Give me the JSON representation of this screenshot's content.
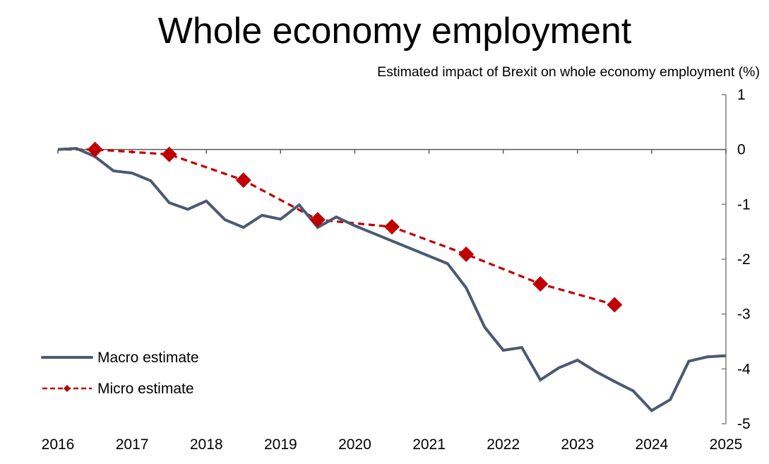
{
  "chart_data": {
    "type": "line",
    "title": "Whole economy employment",
    "subtitle": "Estimated impact of Brexit on whole economy employment (%)",
    "xlabel": "",
    "ylabel": "Estimated impact of Brexit on whole economy employment (%)",
    "xlim": [
      2016,
      2025
    ],
    "ylim": [
      -5,
      1
    ],
    "x_ticks": [
      2016,
      2017,
      2018,
      2019,
      2020,
      2021,
      2022,
      2023,
      2024,
      2025
    ],
    "x_tick_labels": [
      "2016",
      "2017",
      "2018",
      "2019",
      "2020",
      "2021",
      "2022",
      "2023",
      "2024",
      "2025"
    ],
    "y_ticks": [
      1,
      0,
      -1,
      -2,
      -3,
      -4,
      -5
    ],
    "y_tick_labels": [
      "1",
      "0",
      "-1",
      "-2",
      "-3",
      "-4",
      "-5"
    ],
    "y_axis_side": "right",
    "grid": false,
    "legend_position": "bottom-left",
    "series": [
      {
        "name": "Macro estimate",
        "style": "solid",
        "color": "#4A5A72",
        "x": [
          2016.0,
          2016.25,
          2016.5,
          2016.75,
          2017.0,
          2017.25,
          2017.5,
          2017.75,
          2018.0,
          2018.25,
          2018.5,
          2018.75,
          2019.0,
          2019.25,
          2019.5,
          2019.75,
          2020.0,
          2021.25,
          2021.5,
          2021.75,
          2022.0,
          2022.25,
          2022.5,
          2022.75,
          2023.0,
          2023.25,
          2023.5,
          2023.75,
          2024.0,
          2024.25,
          2024.5,
          2024.75,
          2025.0
        ],
        "values": [
          0.0,
          0.02,
          -0.13,
          -0.39,
          -0.43,
          -0.57,
          -0.97,
          -1.09,
          -0.94,
          -1.28,
          -1.42,
          -1.2,
          -1.27,
          -1.01,
          -1.42,
          -1.23,
          -1.39,
          -2.08,
          -2.52,
          -3.24,
          -3.66,
          -3.61,
          -4.2,
          -3.98,
          -3.84,
          -4.05,
          -4.23,
          -4.4,
          -4.76,
          -4.56,
          -3.86,
          -3.78,
          -3.76
        ]
      },
      {
        "name": "Micro estimate",
        "style": "dashed-diamond",
        "color": "#C00000",
        "x": [
          2016.5,
          2017.5,
          2018.5,
          2019.5,
          2020.5,
          2021.5,
          2022.5,
          2023.5
        ],
        "values": [
          0.0,
          -0.09,
          -0.56,
          -1.28,
          -1.41,
          -1.91,
          -2.45,
          -2.83
        ],
        "line_start": {
          "x": 2016.1,
          "value": 0.0
        }
      }
    ]
  }
}
